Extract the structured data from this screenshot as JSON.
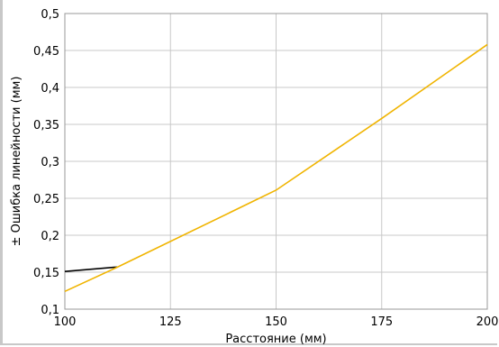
{
  "chart_data": {
    "type": "line",
    "title": "",
    "xlabel": "Расстояние (мм)",
    "ylabel": "± Ошибка линейности (мм)",
    "xlim": [
      100,
      200
    ],
    "ylim": [
      0.1,
      0.5
    ],
    "grid": true,
    "x_ticks": [
      100,
      125,
      150,
      175,
      200
    ],
    "x_tick_labels": [
      "100",
      "125",
      "150",
      "175",
      "200"
    ],
    "y_ticks": [
      0.1,
      0.15,
      0.2,
      0.25,
      0.3,
      0.35,
      0.4,
      0.45,
      0.5
    ],
    "y_tick_labels": [
      "0,1",
      "0,15",
      "0,2",
      "0,25",
      "0,3",
      "0,35",
      "0,4",
      "0,45",
      "0,5"
    ],
    "series": [
      {
        "color": "#000000",
        "points": [
          [
            100,
            0.151
          ],
          [
            112.5,
            0.157
          ]
        ]
      },
      {
        "color": "#f0b400",
        "points": [
          [
            100,
            0.124
          ],
          [
            112.5,
            0.157
          ],
          [
            150,
            0.261
          ],
          [
            175,
            0.358
          ],
          [
            200,
            0.458
          ]
        ]
      }
    ]
  }
}
